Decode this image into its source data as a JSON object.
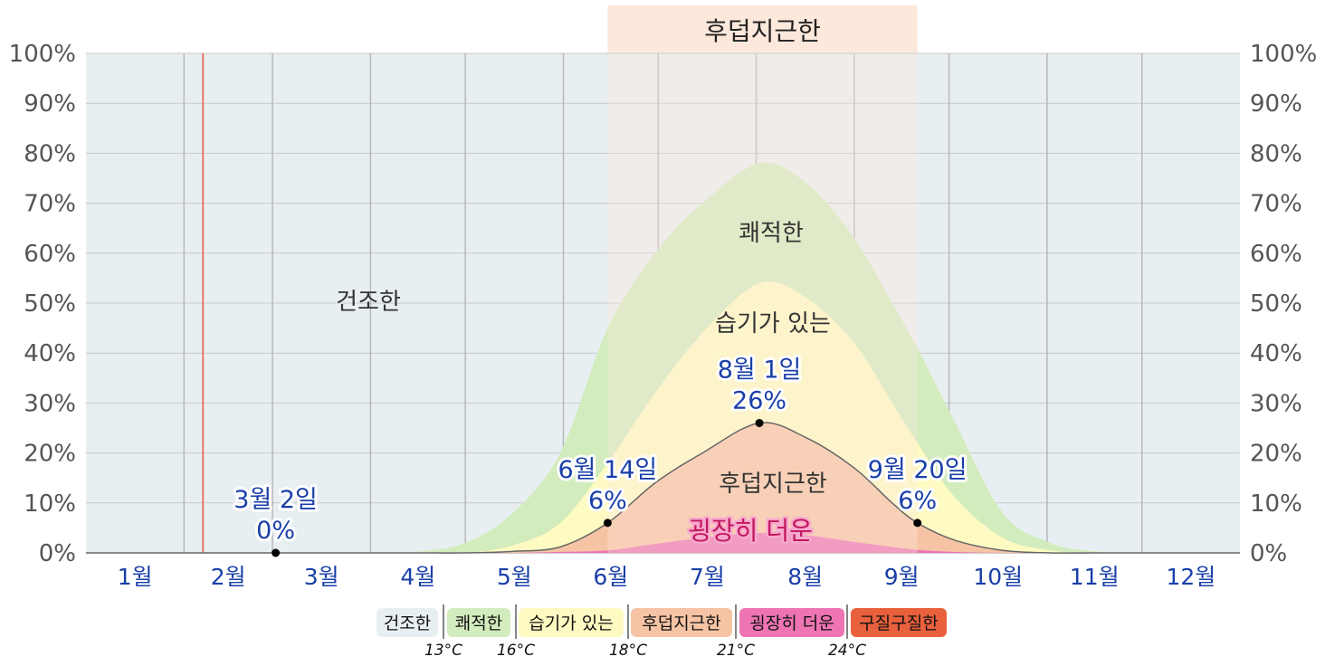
{
  "chart_data": {
    "type": "area",
    "y_ticks": [
      "0%",
      "10%",
      "20%",
      "30%",
      "40%",
      "50%",
      "60%",
      "70%",
      "80%",
      "90%",
      "100%"
    ],
    "ylim": [
      0,
      100
    ],
    "months": [
      "1월",
      "2월",
      "3월",
      "4월",
      "5월",
      "6월",
      "7월",
      "8월",
      "9월",
      "10월",
      "11월",
      "12월"
    ],
    "today_day_of_year": 37,
    "season_band": {
      "label": "후덥지근한",
      "start_day": 165,
      "end_day": 263
    },
    "region_labels": {
      "dry": "건조한",
      "comfortable": "쾌적한",
      "humid": "습기가 있는",
      "muggy": "후덥지근한",
      "oppressive": "굉장히 더운"
    },
    "x_days": [
      0,
      60,
      90,
      105,
      120,
      135,
      150,
      165,
      180,
      195,
      213,
      228,
      243,
      255,
      263,
      275,
      290,
      305,
      320,
      340,
      365
    ],
    "series": [
      {
        "name": "굉장히 더운",
        "key": "oppressive",
        "color": "#ee74b3",
        "values": [
          0,
          0,
          0,
          0,
          0,
          0,
          0.2,
          0.5,
          1.8,
          3,
          4,
          3.5,
          2.2,
          1.2,
          0.6,
          0.2,
          0,
          0,
          0,
          0,
          0
        ]
      },
      {
        "name": "후덥지근한",
        "key": "muggy",
        "color": "#f6c4a4",
        "values": [
          0,
          0,
          0,
          0,
          0,
          0.3,
          1.2,
          6,
          14,
          20,
          26,
          23,
          17,
          10,
          6,
          2.5,
          0.5,
          0,
          0,
          0,
          0
        ]
      },
      {
        "name": "습기가 있는",
        "key": "humid",
        "color": "#fdfbc2",
        "values": [
          0,
          0,
          0,
          0,
          0,
          1.5,
          6,
          18,
          32,
          44,
          54,
          51,
          42,
          30,
          22,
          11,
          3,
          0.5,
          0,
          0,
          0
        ]
      },
      {
        "name": "쾌적한",
        "key": "comfortable",
        "color": "#d3ecbd",
        "values": [
          0,
          0,
          0,
          0.3,
          2,
          8,
          20,
          45,
          60,
          70,
          78,
          74,
          63,
          50,
          41,
          26,
          8,
          2,
          0.3,
          0,
          0
        ]
      }
    ],
    "callouts": [
      {
        "date": "3월 2일",
        "value": "0%",
        "day": 60,
        "y": 0
      },
      {
        "date": "6월 14일",
        "value": "6%",
        "day": 165,
        "y": 6
      },
      {
        "date": "8월 1일",
        "value": "26%",
        "day": 213,
        "y": 26
      },
      {
        "date": "9월 20일",
        "value": "6%",
        "day": 263,
        "y": 6
      }
    ],
    "legend": {
      "chips": [
        {
          "label": "건조한",
          "color": "#e8eff2"
        },
        {
          "label": "쾌적한",
          "color": "#d3ecbd"
        },
        {
          "label": "습기가 있는",
          "color": "#fdfbc2"
        },
        {
          "label": "후덥지근한",
          "color": "#f6c4a4"
        },
        {
          "label": "굉장히 더운",
          "color": "#ee74b3"
        },
        {
          "label": "구질구질한",
          "color": "#e8603c"
        }
      ],
      "thresholds": [
        "13°C",
        "16°C",
        "18°C",
        "21°C",
        "24°C"
      ]
    },
    "colors": {
      "dry_bg": "#e8eff2",
      "band": "#fde8dc",
      "today_line": "#e8766a",
      "grid": "#c8c8c8",
      "muggy_line": "#666666"
    }
  }
}
